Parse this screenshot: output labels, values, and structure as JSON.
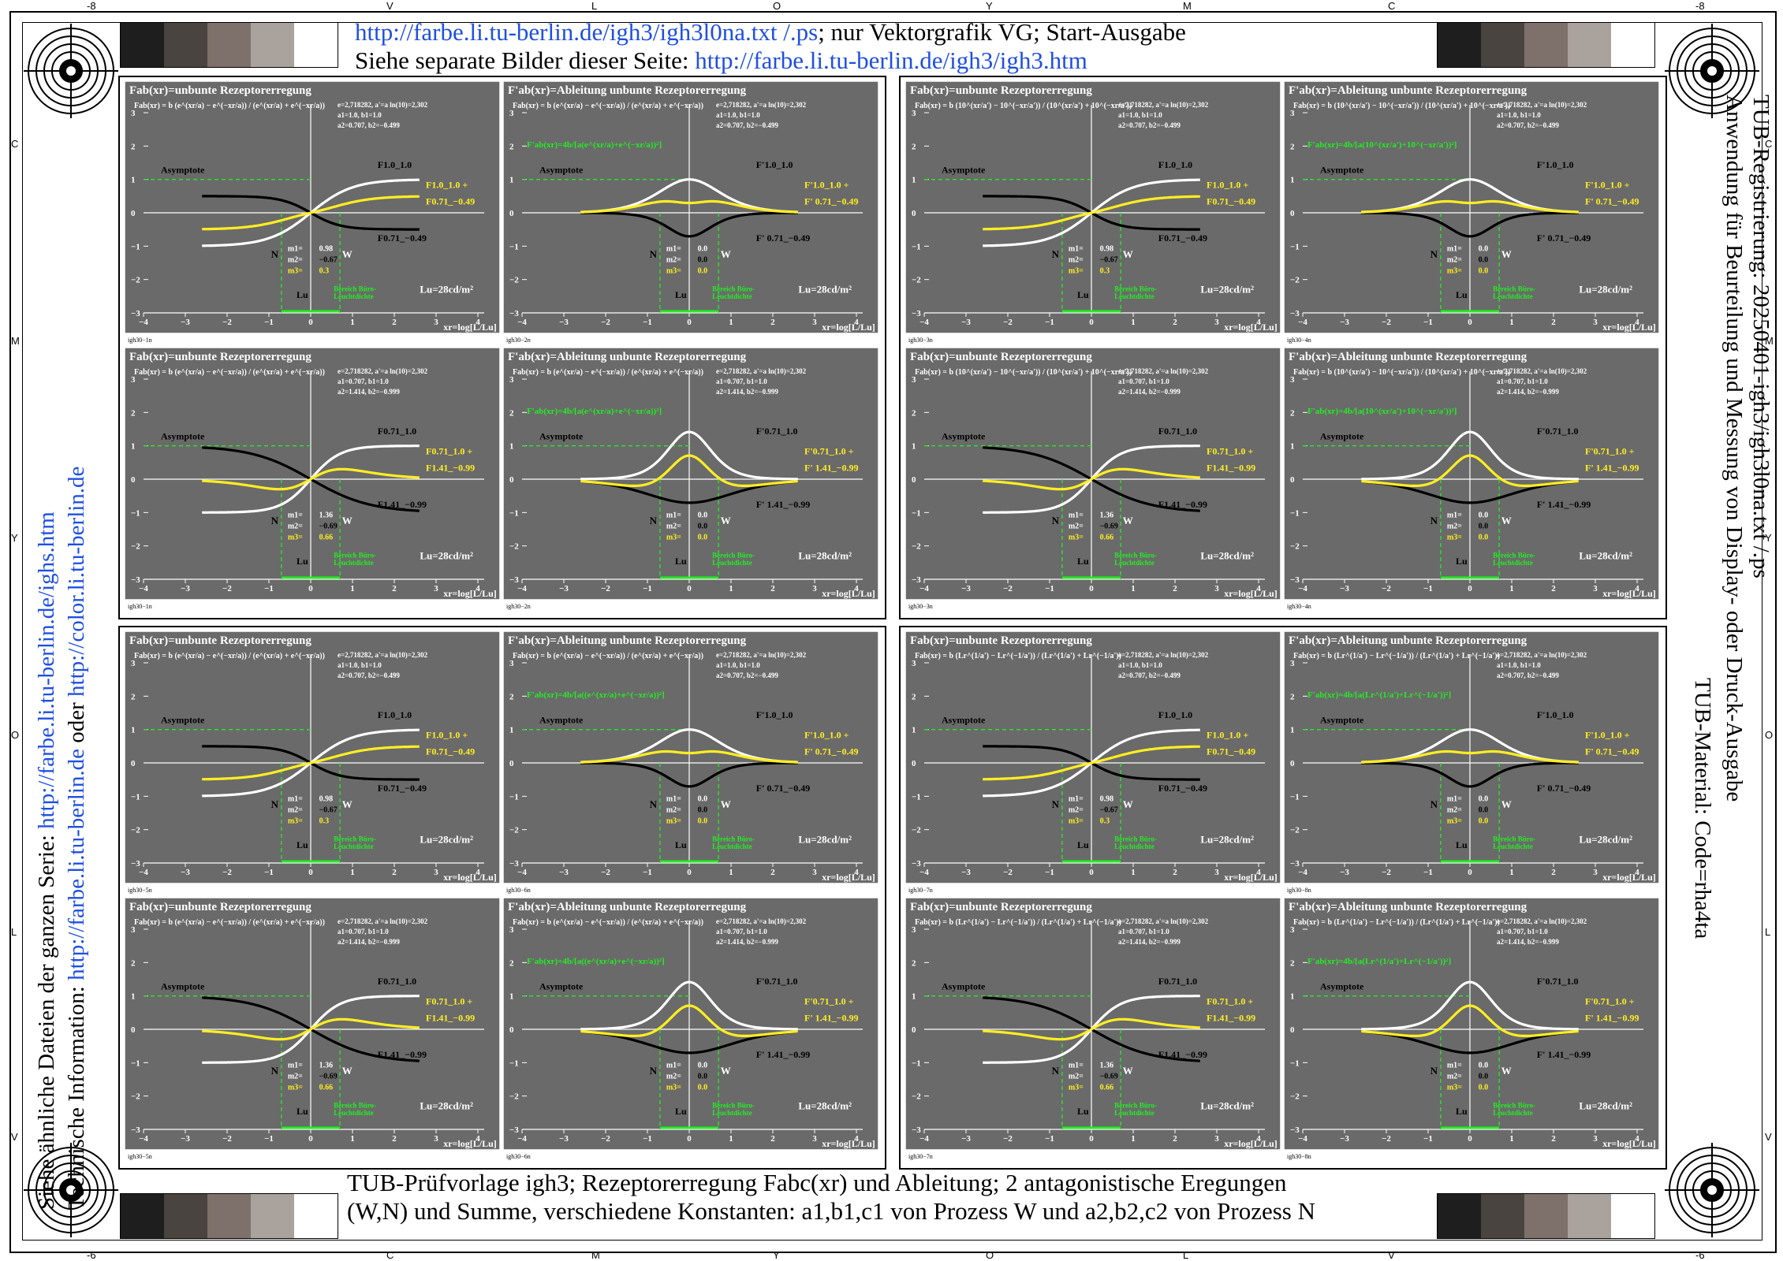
{
  "header": {
    "line1_link": "http://farbe.li.tu-berlin.de/igh3/igh3l0na.txt /.ps",
    "line1_rest": "; nur Vektorgrafik VG; Start-Ausgabe",
    "line2_text": "Siehe separate Bilder dieser Seite: ",
    "line2_link": "http://farbe.li.tu-berlin.de/igh3/igh3.htm"
  },
  "footer": {
    "line1": "TUB-Prüfvorlage igh3; Rezeptorerregung Fabc(xr) und Ableitung; 2 antagonistische Eregungen",
    "line2": "(W,N) und Summe, verschiedene Konstanten: a1,b1,c1 von Prozess W und a2,b2,c2 von Prozess N"
  },
  "side_left": {
    "line1_text": "Siehe ähnliche Dateien der ganzen Serie: ",
    "line1_link": "http://farbe.li.tu-berlin.de/ighs.htm",
    "line2_text": "Technische Information: ",
    "line2_link1": "http://farbe.li.tu-berlin.de",
    "line2_mid": " oder ",
    "line2_link2": "http://color.li.tu-berlin.de"
  },
  "side_right": {
    "line1": "TUB-Registrierung: 20250401-igh3/igh3l0na.txt /.ps",
    "line2": "Anwendung für Beurteilung und Messung von Display- oder Druck-Ausgabe",
    "line3": "TUB-Material: Code=rha4ta"
  },
  "edge_marks": {
    "top": [
      "-8",
      "V",
      "L",
      "O",
      "Y",
      "M",
      "C",
      "-8"
    ],
    "bottom": [
      "-6",
      "C",
      "M",
      "Y",
      "O",
      "L",
      "V",
      "-6"
    ],
    "left": [
      "C",
      "M",
      "Y",
      "O",
      "L",
      "V"
    ],
    "right": [
      "C",
      "M",
      "Y",
      "O",
      "L",
      "V"
    ]
  },
  "colors": {
    "panel_bg": "#6a6a6a",
    "curve_white": "#ffffff",
    "curve_black": "#000000",
    "curve_yellow": "#ffee22",
    "guide_green": "#22ee22",
    "link_blue": "#1f4fe0"
  },
  "swatches": [
    "#1e1e1e",
    "#4a4440",
    "#7e706a",
    "#aaa29c",
    "#ffffff"
  ],
  "common": {
    "asymptote": "Asymptote",
    "bereich1": "Bereich Büro-",
    "bereich2": "Leuchtdichte",
    "lu_label": "Lu=28cd/m²",
    "lu_mark": "Lu",
    "xaxis_label": "xr=log[L/Lu]",
    "n_label": "N",
    "w_label": "W",
    "yticks": [
      "3",
      "2",
      "1",
      "0",
      "−1",
      "−2",
      "−3"
    ],
    "xticks": [
      "−4",
      "−3",
      "−2",
      "−1",
      "0",
      "1",
      "2",
      "3",
      "4"
    ]
  },
  "chart_data": {
    "type": "line",
    "x_range": [
      -4,
      4
    ],
    "y_range": [
      -3,
      3
    ],
    "xlabel": "xr=log[L/Lu]",
    "panels": [
      {
        "title": "Fab(xr)=unbunte Rezeptorerregung",
        "formula": "Fab(xr) = b (e^(xr/a) − e^(−xr/a)) / (e^(xr/a) + e^(−xr/a))",
        "green_formula": "",
        "c1": "e=2,718282, a'=a ln(10)=2,302",
        "c2": "a1=1.0, b1=1.0",
        "c3": "a2=0.707, b2=−0.499",
        "lab_w": "F1.0_1.0",
        "lab_y1": "F1.0_1.0 +",
        "lab_y2": "F0.71_−0.49",
        "lab_b": "F0.71_−0.49",
        "m1": "0.98",
        "m2": "−0.67",
        "m3": "0.3",
        "code": "igh30−1n",
        "deriv": false,
        "a1": 1.0,
        "b1": 1.0,
        "a2": 0.707,
        "b2": -0.499
      },
      {
        "title": "F'ab(xr)=Ableitung unbunte Rezeptorerregung",
        "formula": "Fab(xr) = b (e^(xr/a) − e^(−xr/a)) / (e^(xr/a) + e^(−xr/a))",
        "green_formula": "F'ab(xr)=4b/[a(e^(xr/a)+e^(−xr/a))²]",
        "c1": "e=2,718282, a'=a ln(10)=2,302",
        "c2": "a1=1.0, b1=1.0",
        "c3": "a2=0.707, b2=−0.499",
        "lab_w": "F'1.0_1.0",
        "lab_y1": "F'1.0_1.0 +",
        "lab_y2": "F' 0.71_−0.49",
        "lab_b": "F' 0.71_−0.49",
        "m1": "0.0",
        "m2": "0.0",
        "m3": "0.0",
        "code": "igh30−2n",
        "deriv": true,
        "a1": 1.0,
        "b1": 1.0,
        "a2": 0.707,
        "b2": -0.499
      },
      {
        "title": "Fab(xr)=unbunte Rezeptorerregung",
        "formula": "Fab(xr) = b (e^(xr/a) − e^(−xr/a)) / (e^(xr/a) + e^(−xr/a))",
        "green_formula": "",
        "c1": "e=2,718282, a'=a ln(10)=2,302",
        "c2": "a1=0.707, b1=1.0",
        "c3": "a2=1.414, b2=−0.999",
        "lab_w": "F0.71_1.0",
        "lab_y1": "F0.71_1.0 +",
        "lab_y2": "F1.41_−0.99",
        "lab_b": "F1.41_−0.99",
        "m1": "1.36",
        "m2": "−0.69",
        "m3": "0.66",
        "code": "igh30−1n",
        "deriv": false,
        "a1": 0.707,
        "b1": 1.0,
        "a2": 1.414,
        "b2": -0.999
      },
      {
        "title": "F'ab(xr)=Ableitung unbunte Rezeptorerregung",
        "formula": "Fab(xr) = b (e^(xr/a) − e^(−xr/a)) / (e^(xr/a) + e^(−xr/a))",
        "green_formula": "F'ab(xr)=4b/[a(e^(xr/a)+e^(−xr/a))²]",
        "c1": "e=2,718282, a'=a ln(10)=2,302",
        "c2": "a1=0.707, b1=1.0",
        "c3": "a2=1.414, b2=−0.999",
        "lab_w": "F'0.71_1.0",
        "lab_y1": "F'0.71_1.0 +",
        "lab_y2": "F' 1.41_−0.99",
        "lab_b": "F' 1.41_−0.99",
        "m1": "0.0",
        "m2": "0.0",
        "m3": "0.0",
        "code": "igh30−2n",
        "deriv": true,
        "a1": 0.707,
        "b1": 1.0,
        "a2": 1.414,
        "b2": -0.999
      },
      {
        "title": "Fab(xr)=unbunte Rezeptorerregung",
        "formula": "Fab(xr) = b (10^(xr/a') − 10^(−xr/a')) / (10^(xr/a') + 10^(−xr/a'))",
        "green_formula": "",
        "c1": "e=2,718282, a'=a ln(10)=2,302",
        "c2": "a1=1.0, b1=1.0",
        "c3": "a2=0.707, b2=−0.499",
        "lab_w": "F1.0_1.0",
        "lab_y1": "F1.0_1.0 +",
        "lab_y2": "F0.71_−0.49",
        "lab_b": "F0.71_−0.49",
        "m1": "0.98",
        "m2": "−0.67",
        "m3": "0.3",
        "code": "igh30−3n",
        "deriv": false,
        "a1": 1.0,
        "b1": 1.0,
        "a2": 0.707,
        "b2": -0.499
      },
      {
        "title": "F'ab(xr)=Ableitung unbunte Rezeptorerregung",
        "formula": "Fab(xr) = b (10^(xr/a') − 10^(−xr/a')) / (10^(xr/a') + 10^(−xr/a'))",
        "green_formula": "F'ab(xr)=4b/[a(10^(xr/a')+10^(−xr/a'))²]",
        "c1": "e=2,718282, a'=a ln(10)=2,302",
        "c2": "a1=1.0, b1=1.0",
        "c3": "a2=0.707, b2=−0.499",
        "lab_w": "F'1.0_1.0",
        "lab_y1": "F'1.0_1.0 +",
        "lab_y2": "F' 0.71_−0.49",
        "lab_b": "F' 0.71_−0.49",
        "m1": "0.0",
        "m2": "0.0",
        "m3": "0.0",
        "code": "igh30−4n",
        "deriv": true,
        "a1": 1.0,
        "b1": 1.0,
        "a2": 0.707,
        "b2": -0.499
      },
      {
        "title": "Fab(xr)=unbunte Rezeptorerregung",
        "formula": "Fab(xr) = b (10^(xr/a') − 10^(−xr/a')) / (10^(xr/a') + 10^(−xr/a'))",
        "green_formula": "",
        "c1": "e=2,718282, a'=a ln(10)=2,302",
        "c2": "a1=0.707, b1=1.0",
        "c3": "a2=1.414, b2=−0.999",
        "lab_w": "F0.71_1.0",
        "lab_y1": "F0.71_1.0 +",
        "lab_y2": "F1.41_−0.99",
        "lab_b": "F1.41_−0.99",
        "m1": "1.36",
        "m2": "−0.69",
        "m3": "0.66",
        "code": "igh30−3n",
        "deriv": false,
        "a1": 0.707,
        "b1": 1.0,
        "a2": 1.414,
        "b2": -0.999
      },
      {
        "title": "F'ab(xr)=Ableitung unbunte Rezeptorerregung",
        "formula": "Fab(xr) = b (10^(xr/a') − 10^(−xr/a')) / (10^(xr/a') + 10^(−xr/a'))",
        "green_formula": "F'ab(xr)=4b/[a(10^(xr/a')+10^(−xr/a'))²]",
        "c1": "e=2,718282, a'=a ln(10)=2,302",
        "c2": "a1=0.707, b1=1.0",
        "c3": "a2=1.414, b2=−0.999",
        "lab_w": "F'0.71_1.0",
        "lab_y1": "F'0.71_1.0 +",
        "lab_y2": "F' 1.41_−0.99",
        "lab_b": "F' 1.41_−0.99",
        "m1": "0.0",
        "m2": "0.0",
        "m3": "0.0",
        "code": "igh30−4n",
        "deriv": true,
        "a1": 0.707,
        "b1": 1.0,
        "a2": 1.414,
        "b2": -0.999
      },
      {
        "title": "Fab(xr)=unbunte Rezeptorerregung",
        "formula": "Fab(xr) = b (e^(xr/a) − e^(−xr/a)) / (e^(xr/a) + e^(−xr/a))",
        "green_formula": "",
        "c1": "e=2,718282, a'=a ln(10)=2,302",
        "c2": "a1=1.0, b1=1.0",
        "c3": "a2=0.707, b2=−0.499",
        "lab_w": "F1.0_1.0",
        "lab_y1": "F1.0_1.0 +",
        "lab_y2": "F0.71_−0.49",
        "lab_b": "F0.71_−0.49",
        "m1": "0.98",
        "m2": "−0.67",
        "m3": "0.3",
        "code": "igh30−5n",
        "deriv": false,
        "a1": 1.0,
        "b1": 1.0,
        "a2": 0.707,
        "b2": -0.499
      },
      {
        "title": "F'ab(xr)=Ableitung unbunte Rezeptorerregung",
        "formula": "Fab(xr) = b (e^(xr/a) − e^(−xr/a)) / (e^(xr/a) + e^(−xr/a))",
        "green_formula": "F'ab(xr)=4b/[a((e^(xr/a)+e^(−xr/a))²]",
        "c1": "e=2,718282, a'=a ln(10)=2,302",
        "c2": "a1=1.0, b1=1.0",
        "c3": "a2=0.707, b2=−0.499",
        "lab_w": "F'1.0_1.0",
        "lab_y1": "F'1.0_1.0 +",
        "lab_y2": "F' 0.71_−0.49",
        "lab_b": "F' 0.71_−0.49",
        "m1": "0.0",
        "m2": "0.0",
        "m3": "0.0",
        "code": "igh30−6n",
        "deriv": true,
        "a1": 1.0,
        "b1": 1.0,
        "a2": 0.707,
        "b2": -0.499
      },
      {
        "title": "Fab(xr)=unbunte Rezeptorerregung",
        "formula": "Fab(xr) = b (e^(xr/a) − e^(−xr/a)) / (e^(xr/a) + e^(−xr/a))",
        "green_formula": "",
        "c1": "e=2,718282, a'=a ln(10)=2,302",
        "c2": "a1=0.707, b1=1.0",
        "c3": "a2=1.414, b2=−0.999",
        "lab_w": "F0.71_1.0",
        "lab_y1": "F0.71_1.0 +",
        "lab_y2": "F1.41_−0.99",
        "lab_b": "F1.41_−0.99",
        "m1": "1.36",
        "m2": "−0.69",
        "m3": "0.66",
        "code": "igh30−5n",
        "deriv": false,
        "a1": 0.707,
        "b1": 1.0,
        "a2": 1.414,
        "b2": -0.999
      },
      {
        "title": "F'ab(xr)=Ableitung unbunte Rezeptorerregung",
        "formula": "Fab(xr) = b (e^(xr/a) − e^(−xr/a)) / (e^(xr/a) + e^(−xr/a))",
        "green_formula": "F'ab(xr)=4b/[a((e^(xr/a)+e^(−xr/a))²]",
        "c1": "e=2,718282, a'=a ln(10)=2,302",
        "c2": "a1=0.707, b1=1.0",
        "c3": "a2=1.414, b2=−0.999",
        "lab_w": "F'0.71_1.0",
        "lab_y1": "F'0.71_1.0 +",
        "lab_y2": "F' 1.41_−0.99",
        "lab_b": "F' 1.41_−0.99",
        "m1": "0.0",
        "m2": "0.0",
        "m3": "0.0",
        "code": "igh30−6n",
        "deriv": true,
        "a1": 0.707,
        "b1": 1.0,
        "a2": 1.414,
        "b2": -0.999
      },
      {
        "title": "Fab(xr)=unbunte Rezeptorerregung",
        "formula": "Fab(xr) = b (Lr^(1/a') − Lr^(−1/a')) / (Lr^(1/a') + Lr^(−1/a'))",
        "green_formula": "",
        "c1": "e=2,718282, a'=a ln(10)=2,302",
        "c2": "a1=1.0, b1=1.0",
        "c3": "a2=0.707, b2=−0.499",
        "lab_w": "F1.0_1.0",
        "lab_y1": "F1.0_1.0 +",
        "lab_y2": "F0.71_−0.49",
        "lab_b": "F0.71_−0.49",
        "m1": "0.98",
        "m2": "−0.67",
        "m3": "0.3",
        "code": "igh30−7n",
        "deriv": false,
        "a1": 1.0,
        "b1": 1.0,
        "a2": 0.707,
        "b2": -0.499
      },
      {
        "title": "F'ab(xr)=Ableitung unbunte Rezeptorerregung",
        "formula": "Fab(xr) = b (Lr^(1/a') − Lr^(−1/a')) / (Lr^(1/a') + Lr^(−1/a'))",
        "green_formula": "F'ab(xr)=4b/[a(Lr^(1/a')+Lr^(−1/a'))²]",
        "c1": "e=2,718282, a'=a ln(10)=2,302",
        "c2": "a1=1.0, b1=1.0",
        "c3": "a2=0.707, b2=−0.499",
        "lab_w": "F'1.0_1.0",
        "lab_y1": "F'1.0_1.0 +",
        "lab_y2": "F' 0.71_−0.49",
        "lab_b": "F' 0.71_−0.49",
        "m1": "0.0",
        "m2": "0.0",
        "m3": "0.0",
        "code": "igh30−8n",
        "deriv": true,
        "a1": 1.0,
        "b1": 1.0,
        "a2": 0.707,
        "b2": -0.499
      },
      {
        "title": "Fab(xr)=unbunte Rezeptorerregung",
        "formula": "Fab(xr) = b (Lr^(1/a') − Lr^(−1/a')) / (Lr^(1/a') + Lr^(−1/a'))",
        "green_formula": "",
        "c1": "e=2,718282, a'=a ln(10)=2,302",
        "c2": "a1=0.707, b1=1.0",
        "c3": "a2=1.414, b2=−0.999",
        "lab_w": "F0.71_1.0",
        "lab_y1": "F0.71_1.0 +",
        "lab_y2": "F1.41_−0.99",
        "lab_b": "F1.41_−0.99",
        "m1": "1.36",
        "m2": "−0.69",
        "m3": "0.66",
        "code": "igh30−7n",
        "deriv": false,
        "a1": 0.707,
        "b1": 1.0,
        "a2": 1.414,
        "b2": -0.999
      },
      {
        "title": "F'ab(xr)=Ableitung unbunte Rezeptorerregung",
        "formula": "Fab(xr) = b (Lr^(1/a') − Lr^(−1/a')) / (Lr^(1/a') + Lr^(−1/a'))",
        "green_formula": "F'ab(xr)=4b/[a(Lr^(1/a')+Lr^(−1/a'))²]",
        "c1": "e=2,718282, a'=a ln(10)=2,302",
        "c2": "a1=0.707, b1=1.0",
        "c3": "a2=1.414, b2=−0.999",
        "lab_w": "F'0.71_1.0",
        "lab_y1": "F'0.71_1.0 +",
        "lab_y2": "F' 1.41_−0.99",
        "lab_b": "F' 1.41_−0.99",
        "m1": "0.0",
        "m2": "0.0",
        "m3": "0.0",
        "code": "igh30−8n",
        "deriv": true,
        "a1": 0.707,
        "b1": 1.0,
        "a2": 1.414,
        "b2": -0.999
      }
    ]
  }
}
